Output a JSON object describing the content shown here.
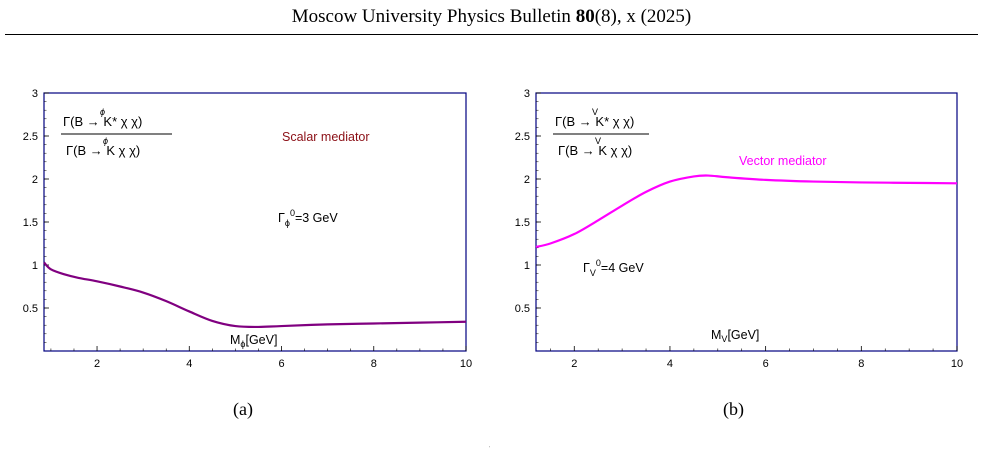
{
  "header": {
    "prefix": "Moscow University Physics Bulletin ",
    "volume": "80",
    "suffix": "(8), x (2025)"
  },
  "figures": [
    {
      "caption": "(a)",
      "label_text": "Scalar mediator",
      "label_color": "#8b0f16",
      "width_text": "Γ_ϕ^0=3 GeV",
      "xlabel": "M_ϕ[GeV]",
      "ylabel": "Γ(B →ϕ K* χ̄ χ) / Γ(B →ϕ K χ̄ χ)",
      "frac_num": {
        "pre": "Γ(B ",
        "over": "ϕ",
        "post": " K* χ χ)"
      },
      "frac_den": {
        "pre": "Γ(B ",
        "over": "ϕ",
        "post": " K χ χ)"
      }
    },
    {
      "caption": "(b)",
      "label_text": "Vector mediator",
      "label_color": "#ff00ff",
      "width_text": "Γ_V^0=4 GeV",
      "xlabel": "M_V[GeV]",
      "ylabel": "Γ(B →V K* χ̄ χ) / Γ(B →V K χ̄ χ)",
      "frac_num": {
        "pre": "Γ(B ",
        "over": "V",
        "post": " K* χ χ)"
      },
      "frac_den": {
        "pre": "Γ(B ",
        "over": "V",
        "post": " K χ χ)"
      }
    }
  ],
  "chart_data": [
    {
      "type": "line",
      "title": "",
      "xlabel": "M_ϕ[GeV]",
      "ylabel": "Γ(B→K*χ̄χ)/Γ(B→Kχ̄χ)",
      "xlim": [
        0.85,
        10
      ],
      "ylim": [
        0,
        3
      ],
      "xticks": [
        2,
        4,
        6,
        8,
        10
      ],
      "yticks": [
        0.5,
        1,
        1.5,
        2,
        2.5,
        3
      ],
      "xtick_labels": [
        "2",
        "4",
        "6",
        "8",
        "10"
      ],
      "ytick_labels": [
        "0.5",
        "1",
        "1.5",
        "2",
        "2.5",
        "3"
      ],
      "grid": false,
      "series": [
        {
          "color": "#800080",
          "x": [
            0.85,
            1.0,
            1.3,
            1.6,
            2.0,
            2.5,
            3.0,
            3.5,
            4.0,
            4.5,
            5.0,
            5.5,
            6.0,
            7.0,
            8.0,
            9.0,
            10.0
          ],
          "y": [
            1.03,
            0.95,
            0.89,
            0.85,
            0.81,
            0.75,
            0.68,
            0.58,
            0.46,
            0.35,
            0.29,
            0.28,
            0.29,
            0.31,
            0.32,
            0.33,
            0.34
          ]
        }
      ]
    },
    {
      "type": "line",
      "title": "",
      "xlabel": "M_V[GeV]",
      "ylabel": "Γ(B→K*χ̄χ)/Γ(B→Kχ̄χ)",
      "xlim": [
        1.2,
        10
      ],
      "ylim": [
        0,
        3
      ],
      "xticks": [
        2,
        4,
        6,
        8,
        10
      ],
      "yticks": [
        0.5,
        1,
        1.5,
        2,
        2.5,
        3
      ],
      "xtick_labels": [
        "2",
        "4",
        "6",
        "8",
        "10"
      ],
      "ytick_labels": [
        "0.5",
        "1",
        "1.5",
        "2",
        "2.5",
        "3"
      ],
      "grid": false,
      "series": [
        {
          "color": "#ff00ff",
          "x": [
            1.2,
            1.5,
            2.0,
            2.5,
            3.0,
            3.5,
            4.0,
            4.5,
            4.8,
            5.2,
            6.0,
            7.0,
            8.0,
            9.0,
            10.0
          ],
          "y": [
            1.21,
            1.25,
            1.36,
            1.52,
            1.69,
            1.85,
            1.97,
            2.03,
            2.04,
            2.02,
            1.99,
            1.97,
            1.96,
            1.955,
            1.95
          ]
        }
      ]
    }
  ]
}
